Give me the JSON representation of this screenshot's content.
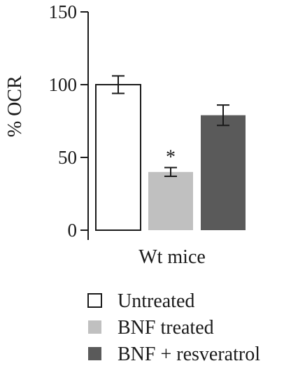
{
  "chart_data": {
    "type": "bar",
    "categories": [
      "Wt mice"
    ],
    "series": [
      {
        "name": "Untreated",
        "values": [
          100
        ],
        "error": [
          6
        ],
        "color": "#ffffff",
        "annotation": ""
      },
      {
        "name": "BNF treated",
        "values": [
          40
        ],
        "error": [
          3
        ],
        "color": "#c0c0c0",
        "annotation": "*"
      },
      {
        "name": "BNF + resveratrol",
        "values": [
          79
        ],
        "error": [
          7
        ],
        "color": "#5a5a5a",
        "annotation": ""
      }
    ],
    "ylabel": "% OCR",
    "xlabel": "",
    "ylim": [
      0,
      150
    ],
    "yticks": [
      0,
      50,
      100,
      150
    ],
    "grid": false,
    "legend_position": "bottom"
  }
}
